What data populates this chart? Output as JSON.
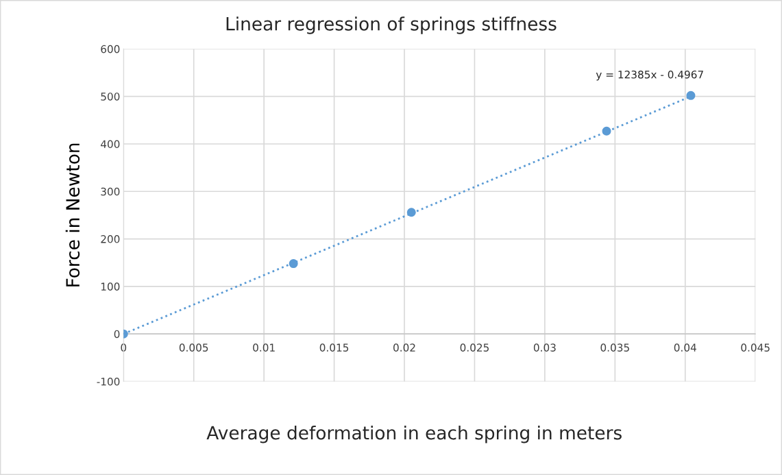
{
  "chart_data": {
    "type": "scatter",
    "title": "Linear regression of springs stiffness",
    "xlabel": "Average deformation in each spring in meters",
    "ylabel": "Force in Newton",
    "series": [
      {
        "color": "#5b9bd5",
        "x": [
          0,
          0.0121,
          0.0205,
          0.0344,
          0.0404
        ],
        "values": [
          0,
          148,
          256,
          427,
          502
        ],
        "marker": "circle"
      },
      {
        "type": "line",
        "color": "#5b9bd5",
        "x": [
          0,
          0.0404
        ],
        "values": [
          0,
          500
        ],
        "line_style": "dotted",
        "marker": "none"
      }
    ],
    "annotations": [
      "y = 12385x - 0.4967"
    ],
    "xlim": [
      0,
      0.045
    ],
    "xticks": [
      0,
      0.005,
      0.01,
      0.015,
      0.02,
      0.025,
      0.03,
      0.035,
      0.04,
      0.045
    ],
    "ylim": [
      -100,
      600
    ],
    "yticks": [
      -100,
      0,
      100,
      200,
      300,
      400,
      500,
      600
    ],
    "grid": true,
    "legend": false
  }
}
